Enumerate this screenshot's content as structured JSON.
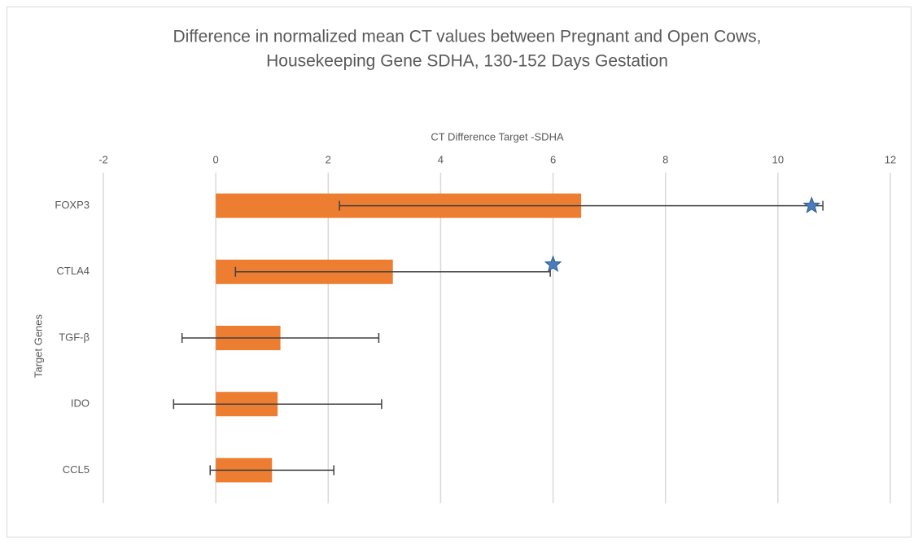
{
  "chart_data": {
    "type": "bar",
    "orientation": "horizontal",
    "title": [
      "Difference in normalized mean CT values between Pregnant and Open Cows,",
      "Housekeeping Gene SDHA, 130-152 Days Gestation"
    ],
    "x_label": "CT Difference  Target -SDHA",
    "y_label": "Target Genes",
    "categories": [
      "FOXP3",
      "CTLA4",
      "TGF-β",
      "IDO",
      "CCL5"
    ],
    "values": [
      6.5,
      3.15,
      1.15,
      1.1,
      1.0
    ],
    "errors": [
      4.3,
      2.8,
      1.75,
      1.85,
      1.1
    ],
    "stars": [
      10.6,
      6.0,
      null,
      null,
      null
    ],
    "color": "#ed7d31",
    "error_color": "#404040",
    "star_color": "#4a7ebb",
    "xlim": [
      -2,
      12
    ],
    "xticks": [
      -2,
      0,
      2,
      4,
      6,
      8,
      10,
      12
    ],
    "grid": true
  }
}
